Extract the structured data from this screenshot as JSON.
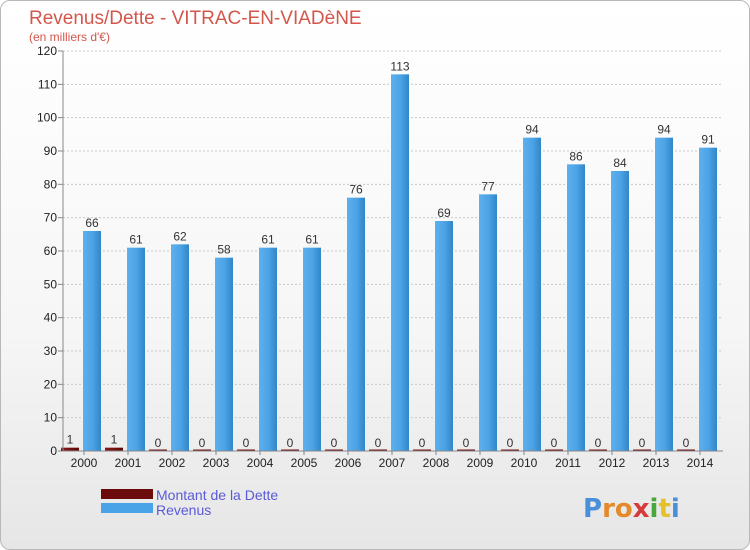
{
  "chart_data": {
    "type": "bar",
    "title": "Revenus/Dette - VITRAC-EN-VIADèNE",
    "subtitle": "(en milliers d'€)",
    "categories": [
      "2000",
      "2001",
      "2002",
      "2003",
      "2004",
      "2005",
      "2006",
      "2007",
      "2008",
      "2009",
      "2010",
      "2011",
      "2012",
      "2013",
      "2014"
    ],
    "series": [
      {
        "name": "Montant de la Dette",
        "color": "#6b0b0b",
        "values": [
          1,
          1,
          0,
          0,
          0,
          0,
          0,
          0,
          0,
          0,
          0,
          0,
          0,
          0,
          0
        ]
      },
      {
        "name": "Revenus",
        "color": "#4aa3e6",
        "values": [
          66,
          61,
          62,
          58,
          61,
          61,
          76,
          113,
          69,
          77,
          94,
          86,
          84,
          94,
          91
        ]
      }
    ],
    "ylim": [
      0,
      120
    ],
    "yticks": [
      0,
      10,
      20,
      30,
      40,
      50,
      60,
      70,
      80,
      90,
      100,
      110,
      120
    ],
    "grid": true,
    "legend_position": "bottom-left"
  },
  "branding": {
    "logo_letters": [
      "P",
      "r",
      "o",
      "x",
      "i",
      "t",
      "i"
    ],
    "logo_colors": [
      "#4a90d9",
      "#e58a2a",
      "#e58a2a",
      "#d63a3a",
      "#4aa83a",
      "#e5c02a",
      "#4a90d9"
    ]
  }
}
